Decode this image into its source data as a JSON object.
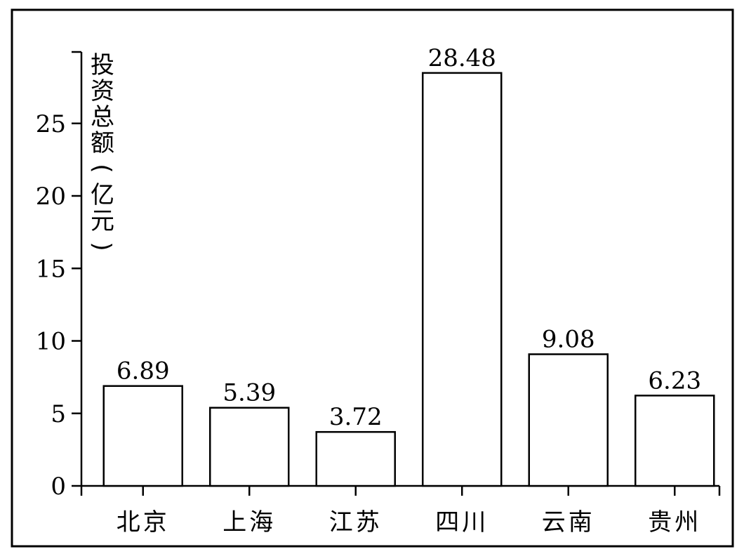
{
  "chart_data": {
    "type": "bar",
    "title": "",
    "xlabel": "",
    "ylabel": "投资总额(亿元)",
    "categories": [
      "北京",
      "上海",
      "江苏",
      "四川",
      "云南",
      "贵州"
    ],
    "values": [
      6.89,
      5.39,
      3.72,
      28.48,
      9.08,
      6.23
    ],
    "value_labels": [
      "6.89",
      "5.39",
      "3.72",
      "28.48",
      "9.08",
      "6.23"
    ],
    "yticks": [
      0,
      5,
      10,
      15,
      20,
      25
    ],
    "ylim": [
      0,
      30
    ],
    "grid": false,
    "legend": "none"
  }
}
